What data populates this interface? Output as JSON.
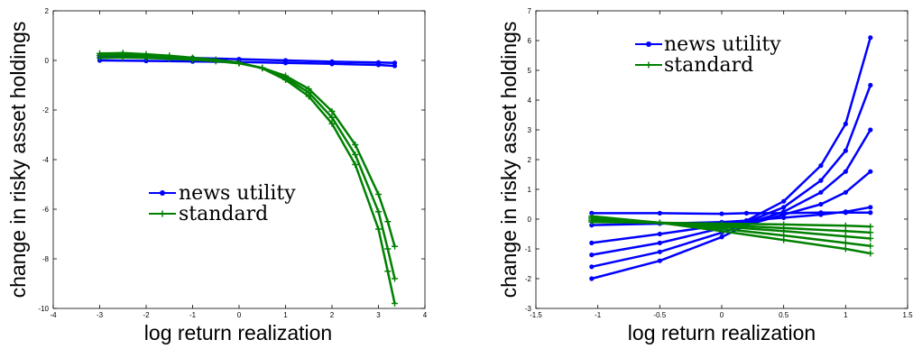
{
  "chart_data": [
    {
      "type": "line",
      "xlabel": "log return realization",
      "ylabel": "change in risky asset holdings",
      "xlim": [
        -4,
        4
      ],
      "ylim": [
        -10,
        2
      ],
      "xticks": [
        "-4",
        "-3",
        "-2",
        "-1",
        "0",
        "1",
        "2",
        "3",
        "4"
      ],
      "yticks": [
        "2",
        "0",
        "-2",
        "-4",
        "-6",
        "-8",
        "-10"
      ],
      "grid": false,
      "legend_position": "center-left",
      "series": [
        {
          "name": "news utility",
          "color": "#0000ff",
          "marker": "dot",
          "curves": [
            {
              "x": [
                -3,
                -2,
                -1,
                0,
                1,
                2,
                3,
                3.35
              ],
              "y": [
                0.18,
                0.15,
                0.1,
                0.05,
                0.0,
                -0.05,
                -0.08,
                -0.1
              ]
            },
            {
              "x": [
                -3,
                -2,
                -1,
                0,
                1,
                2,
                3,
                3.35
              ],
              "y": [
                0.0,
                -0.02,
                -0.04,
                -0.06,
                -0.1,
                -0.14,
                -0.18,
                -0.22
              ]
            }
          ]
        },
        {
          "name": "standard",
          "color": "#008000",
          "marker": "plus",
          "curves": [
            {
              "x": [
                -3,
                -2.5,
                -2,
                -1.5,
                -1,
                -0.5,
                0,
                0.5,
                1,
                1.5,
                2,
                2.5,
                3,
                3.2,
                3.35
              ],
              "y": [
                0.1,
                0.12,
                0.1,
                0.07,
                0.03,
                -0.03,
                -0.12,
                -0.3,
                -0.62,
                -1.15,
                -2.05,
                -3.4,
                -5.4,
                -6.5,
                -7.5
              ]
            },
            {
              "x": [
                -3,
                -2.5,
                -2,
                -1.5,
                -1,
                -0.5,
                0,
                0.5,
                1,
                1.5,
                2,
                2.5,
                3,
                3.2,
                3.35
              ],
              "y": [
                0.2,
                0.22,
                0.18,
                0.13,
                0.07,
                0.0,
                -0.1,
                -0.3,
                -0.7,
                -1.3,
                -2.3,
                -3.8,
                -6.1,
                -7.6,
                -8.8
              ]
            },
            {
              "x": [
                -3,
                -2.5,
                -2,
                -1.5,
                -1,
                -0.5,
                0,
                0.5,
                1,
                1.5,
                2,
                2.5,
                3,
                3.2,
                3.35
              ],
              "y": [
                0.28,
                0.3,
                0.25,
                0.19,
                0.11,
                0.03,
                -0.09,
                -0.32,
                -0.78,
                -1.45,
                -2.55,
                -4.2,
                -6.8,
                -8.5,
                -9.8
              ]
            }
          ]
        }
      ]
    },
    {
      "type": "line",
      "xlabel": "log return realization",
      "ylabel": "change in risky asset holdings",
      "xlim": [
        -1.5,
        1.5
      ],
      "ylim": [
        -3,
        7
      ],
      "xticks": [
        "-1.5",
        "-1",
        "-0.5",
        "0",
        "0.5",
        "1",
        "1.5"
      ],
      "yticks": [
        "7",
        "6",
        "5",
        "4",
        "3",
        "2",
        "1",
        "0",
        "-1",
        "-2",
        "-3"
      ],
      "grid": false,
      "legend_position": "top-left",
      "series": [
        {
          "name": "news utility",
          "color": "#0000ff",
          "marker": "dot",
          "curves": [
            {
              "x": [
                -1.05,
                -0.5,
                0,
                0.2,
                0.5,
                0.8,
                1.0,
                1.2
              ],
              "y": [
                0.2,
                0.2,
                0.18,
                0.2,
                0.2,
                0.22,
                0.22,
                0.22
              ]
            },
            {
              "x": [
                -1.05,
                -0.5,
                0,
                0.2,
                0.5,
                0.8,
                1.0,
                1.2
              ],
              "y": [
                -0.8,
                -0.5,
                -0.2,
                -0.05,
                0.6,
                1.8,
                3.2,
                6.1
              ]
            },
            {
              "x": [
                -1.05,
                -0.5,
                0,
                0.2,
                0.5,
                0.8,
                1.0,
                1.2
              ],
              "y": [
                -1.2,
                -0.8,
                -0.3,
                -0.1,
                0.4,
                1.3,
                2.3,
                4.5
              ]
            },
            {
              "x": [
                -1.05,
                -0.5,
                0,
                0.2,
                0.5,
                0.8,
                1.0,
                1.2
              ],
              "y": [
                -1.6,
                -1.1,
                -0.45,
                -0.15,
                0.25,
                0.9,
                1.6,
                3.0
              ]
            },
            {
              "x": [
                -1.05,
                -0.5,
                0,
                0.2,
                0.5,
                0.8,
                1.0,
                1.2
              ],
              "y": [
                -2.0,
                -1.4,
                -0.6,
                -0.2,
                0.15,
                0.5,
                0.9,
                1.6
              ]
            },
            {
              "x": [
                -1.05,
                -0.5,
                0,
                0.2,
                0.5,
                0.8,
                1.0,
                1.2
              ],
              "y": [
                -0.2,
                -0.15,
                -0.1,
                -0.05,
                0.05,
                0.15,
                0.25,
                0.4
              ]
            }
          ]
        },
        {
          "name": "standard",
          "color": "#008000",
          "marker": "plus",
          "curves": [
            {
              "x": [
                -1.05,
                -0.5,
                0,
                0.5,
                1.0,
                1.2
              ],
              "y": [
                -0.1,
                -0.12,
                -0.15,
                -0.18,
                -0.22,
                -0.25
              ]
            },
            {
              "x": [
                -1.05,
                -0.5,
                0,
                0.5,
                1.0,
                1.2
              ],
              "y": [
                -0.05,
                -0.12,
                -0.2,
                -0.3,
                -0.4,
                -0.45
              ]
            },
            {
              "x": [
                -1.05,
                -0.5,
                0,
                0.5,
                1.0,
                1.2
              ],
              "y": [
                0.0,
                -0.12,
                -0.25,
                -0.4,
                -0.58,
                -0.65
              ]
            },
            {
              "x": [
                -1.05,
                -0.5,
                0,
                0.5,
                1.0,
                1.2
              ],
              "y": [
                0.05,
                -0.12,
                -0.32,
                -0.55,
                -0.8,
                -0.9
              ]
            },
            {
              "x": [
                -1.05,
                -0.5,
                0,
                0.5,
                1.0,
                1.2
              ],
              "y": [
                0.1,
                -0.12,
                -0.4,
                -0.7,
                -1.0,
                -1.15
              ]
            }
          ]
        }
      ]
    }
  ]
}
